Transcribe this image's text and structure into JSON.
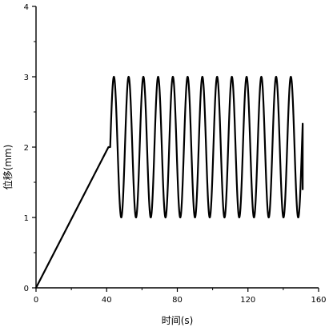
{
  "chart_data": {
    "type": "line",
    "title": "",
    "xlabel": "时间(s)",
    "ylabel": "位移(mm)",
    "xlim": [
      0,
      160
    ],
    "ylim": [
      0,
      4
    ],
    "xticks": [
      0,
      40,
      80,
      120,
      160
    ],
    "yticks": [
      0,
      1,
      2,
      3,
      4
    ],
    "grid": false,
    "legend": "none",
    "line_color": "#000000",
    "series": [
      {
        "segments": [
          {
            "kind": "linear",
            "points": [
              [
                0,
                0
              ],
              [
                41,
                2.0
              ],
              [
                42,
                2.0
              ]
            ]
          },
          {
            "kind": "sine",
            "t_start": 42,
            "t_end": 151,
            "mean": 2.0,
            "amplitude": 1.0,
            "period": 8.35,
            "phase_start_value": 2.0,
            "end_value": 1.4
          }
        ]
      }
    ]
  }
}
